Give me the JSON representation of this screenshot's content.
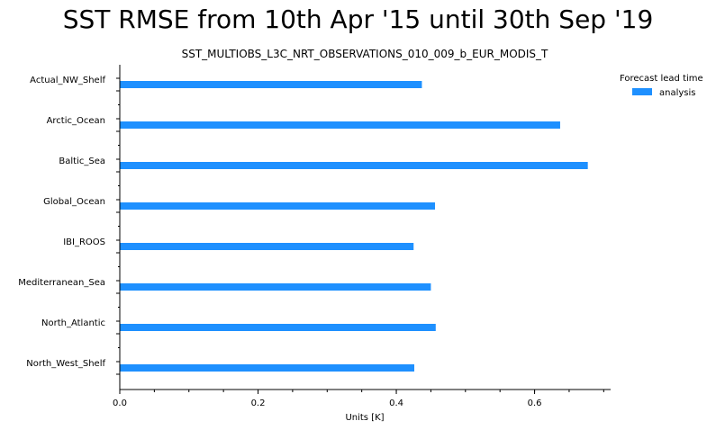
{
  "page_title": "SST RMSE from 10th Apr '15 until 30th Sep '19",
  "chart_data": {
    "type": "bar",
    "orientation": "horizontal",
    "title": "SST_MULTIOBS_L3C_NRT_OBSERVATIONS_010_009_b_EUR_MODIS_T",
    "xlabel": "Units [K]",
    "ylabel": "",
    "xlim": [
      0.0,
      0.71
    ],
    "xticks": [
      "0.0",
      "0.2",
      "0.4",
      "0.6"
    ],
    "categories": [
      "Actual_NW_Shelf",
      "Arctic_Ocean",
      "Baltic_Sea",
      "Global_Ocean",
      "IBI_ROOS",
      "Mediterranean_Sea",
      "North_Atlantic",
      "North_West_Shelf"
    ],
    "series": [
      {
        "name": "analysis",
        "values": [
          0.437,
          0.637,
          0.677,
          0.456,
          0.425,
          0.45,
          0.457,
          0.426
        ],
        "color": "#1e90ff"
      }
    ],
    "grid": false,
    "legend": {
      "title": "Forecast lead time",
      "position": "right-top"
    }
  }
}
